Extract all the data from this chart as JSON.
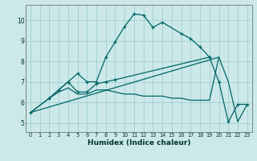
{
  "xlabel": "Humidex (Indice chaleur)",
  "background_color": "#cce8e8",
  "grid_color": "#99cccc",
  "line_color": "#006666",
  "xlim": [
    -0.5,
    23.5
  ],
  "ylim": [
    4.55,
    10.75
  ],
  "xticks": [
    0,
    1,
    2,
    3,
    4,
    5,
    6,
    7,
    8,
    9,
    10,
    11,
    12,
    13,
    14,
    15,
    16,
    17,
    18,
    19,
    20,
    21,
    22,
    23
  ],
  "yticks": [
    5,
    6,
    7,
    8,
    9,
    10
  ],
  "series": [
    {
      "x": [
        0,
        2,
        3,
        4,
        5,
        6,
        7,
        8,
        9,
        10,
        11,
        12,
        13,
        14,
        16,
        17,
        18,
        19
      ],
      "y": [
        5.5,
        6.2,
        6.6,
        7.0,
        7.4,
        7.0,
        7.0,
        8.2,
        8.95,
        9.7,
        10.3,
        10.25,
        9.65,
        9.9,
        9.35,
        9.1,
        8.7,
        8.2
      ],
      "marker": true
    },
    {
      "x": [
        2,
        3,
        4,
        5,
        6,
        7,
        8,
        9,
        19,
        20,
        21,
        22,
        23
      ],
      "y": [
        6.2,
        6.6,
        7.0,
        6.5,
        6.5,
        6.9,
        7.0,
        7.1,
        8.2,
        7.0,
        5.05,
        5.9,
        5.9
      ],
      "marker": true
    },
    {
      "x": [
        0,
        2,
        3,
        4,
        5,
        6,
        7,
        8,
        9,
        10,
        11,
        12,
        13,
        14,
        15,
        16,
        17,
        18,
        19,
        20,
        21,
        22,
        23
      ],
      "y": [
        5.5,
        6.2,
        6.5,
        6.7,
        6.4,
        6.4,
        6.6,
        6.6,
        6.5,
        6.4,
        6.4,
        6.3,
        6.3,
        6.3,
        6.2,
        6.2,
        6.1,
        6.1,
        6.1,
        8.2,
        7.0,
        5.05,
        5.9
      ],
      "marker": false
    },
    {
      "x": [
        0,
        20
      ],
      "y": [
        5.5,
        8.2
      ],
      "marker": false
    }
  ]
}
